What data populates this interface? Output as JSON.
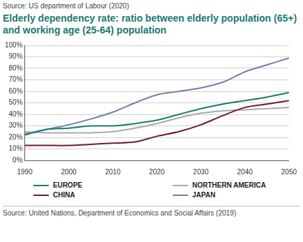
{
  "chart_data": {
    "type": "line",
    "header": "Source: US department of Labour (2020)",
    "title": "Elderly dependency rate: ratio between elderly population (65+) and working age (25-64) population",
    "source": "Source: United Nations, Department of Economics and Social Affairs (2019)",
    "x": [
      1990,
      1995,
      2000,
      2005,
      2010,
      2015,
      2020,
      2025,
      2030,
      2035,
      2040,
      2045,
      2050
    ],
    "series": [
      {
        "name": "EUROPE",
        "color": "#1a7a72",
        "values": [
          22,
          27,
          28,
          30,
          30,
          32,
          35,
          40,
          45,
          49,
          52,
          55,
          59
        ]
      },
      {
        "name": "CHINA",
        "color": "#6b1a36",
        "values": [
          13,
          13,
          13,
          14,
          15,
          16,
          21,
          25,
          31,
          39,
          46,
          49,
          52
        ]
      },
      {
        "name": "NORTHERN AMERICA",
        "color": "#aaaaaa",
        "values": [
          25,
          24,
          24,
          24,
          25,
          28,
          32,
          37,
          41,
          43,
          44,
          45,
          46
        ]
      },
      {
        "name": "JAPAN",
        "color": "#6f80a8",
        "values": [
          23,
          27,
          31,
          36,
          42,
          50,
          57,
          60,
          63,
          68,
          77,
          83,
          89
        ]
      }
    ],
    "xlim": [
      1990,
      2050
    ],
    "xticks": [
      1990,
      2000,
      2010,
      2020,
      2030,
      2040,
      2050
    ],
    "ylim": [
      0,
      100
    ],
    "yticks": [
      {
        "value": 0,
        "label": "0%"
      },
      {
        "value": 10,
        "label": "10%"
      },
      {
        "value": 20,
        "label": "20%"
      },
      {
        "value": 30,
        "label": "30%"
      },
      {
        "value": 40,
        "label": "40%"
      },
      {
        "value": 50,
        "label": "50%"
      },
      {
        "value": 60,
        "label": "60%"
      },
      {
        "value": 70,
        "label": "70%"
      },
      {
        "value": 80,
        "label": "80%"
      },
      {
        "value": 90,
        "label": "90%"
      },
      {
        "value": 100,
        "label": "100%"
      }
    ],
    "grid": true,
    "legend": "bottom"
  }
}
